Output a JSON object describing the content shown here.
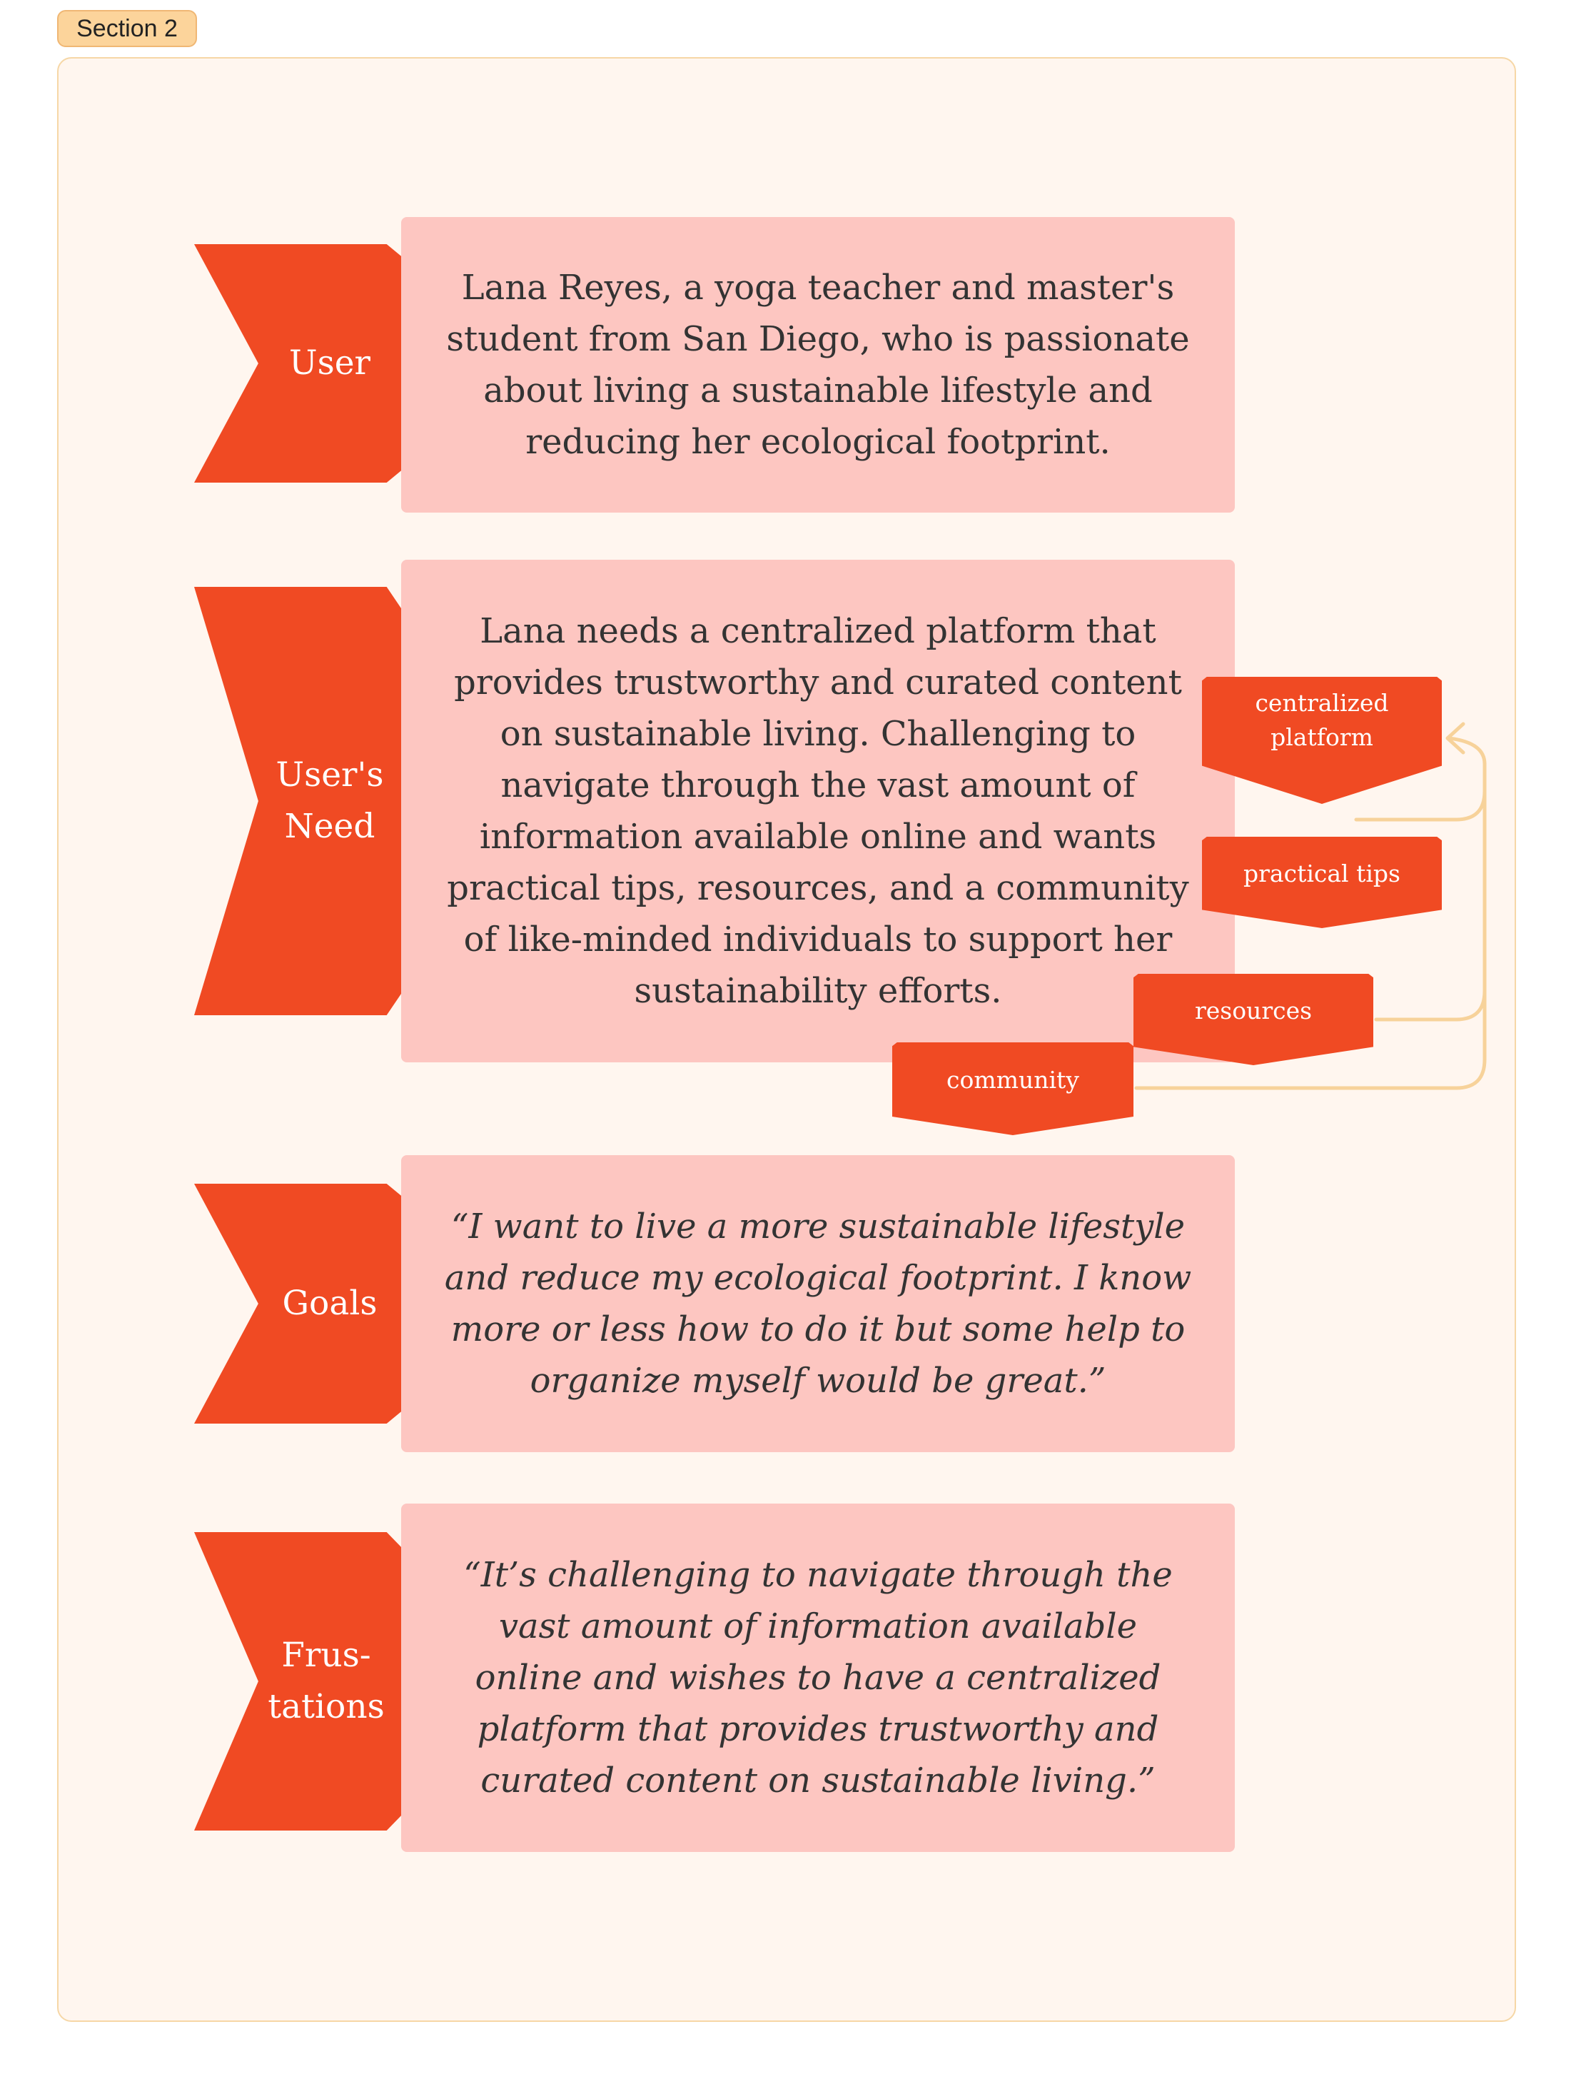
{
  "section": {
    "label": "Section 2"
  },
  "rows": {
    "user": {
      "label": "User",
      "text": "Lana Reyes, a yoga teacher and master's student from San Diego, who is passionate about living a sustainable lifestyle and reducing her ecological footprint."
    },
    "need": {
      "label": "User's Need",
      "text": "Lana needs a centralized platform that provides trustworthy and curated content on sustainable living. Challenging to navigate through the vast amount of information available online and wants practical tips, resources, and a community of like-minded individuals to support her sustainability efforts."
    },
    "goals": {
      "label": "Goals",
      "text": "“I want to live a more sustainable lifestyle and reduce my ecological footprint. I know more or less how to do it but some help to organize myself would be great.”"
    },
    "frustrations": {
      "label": "Frus-tations",
      "text": "“It’s challenging to navigate through the vast amount of information available online and wishes to have a centralized platform that provides trustworthy and curated content on sustainable living.”"
    }
  },
  "tags": {
    "centralized_platform": "centralized platform",
    "practical_tips": "practical tips",
    "resources": "resources",
    "community": "community"
  },
  "colors": {
    "label_bg": "#f04a23",
    "card_bg": "#fdc6c1",
    "frame_bg": "#fff6ef",
    "connector": "#f7d29a",
    "section_tag_bg": "#fcd49b"
  }
}
